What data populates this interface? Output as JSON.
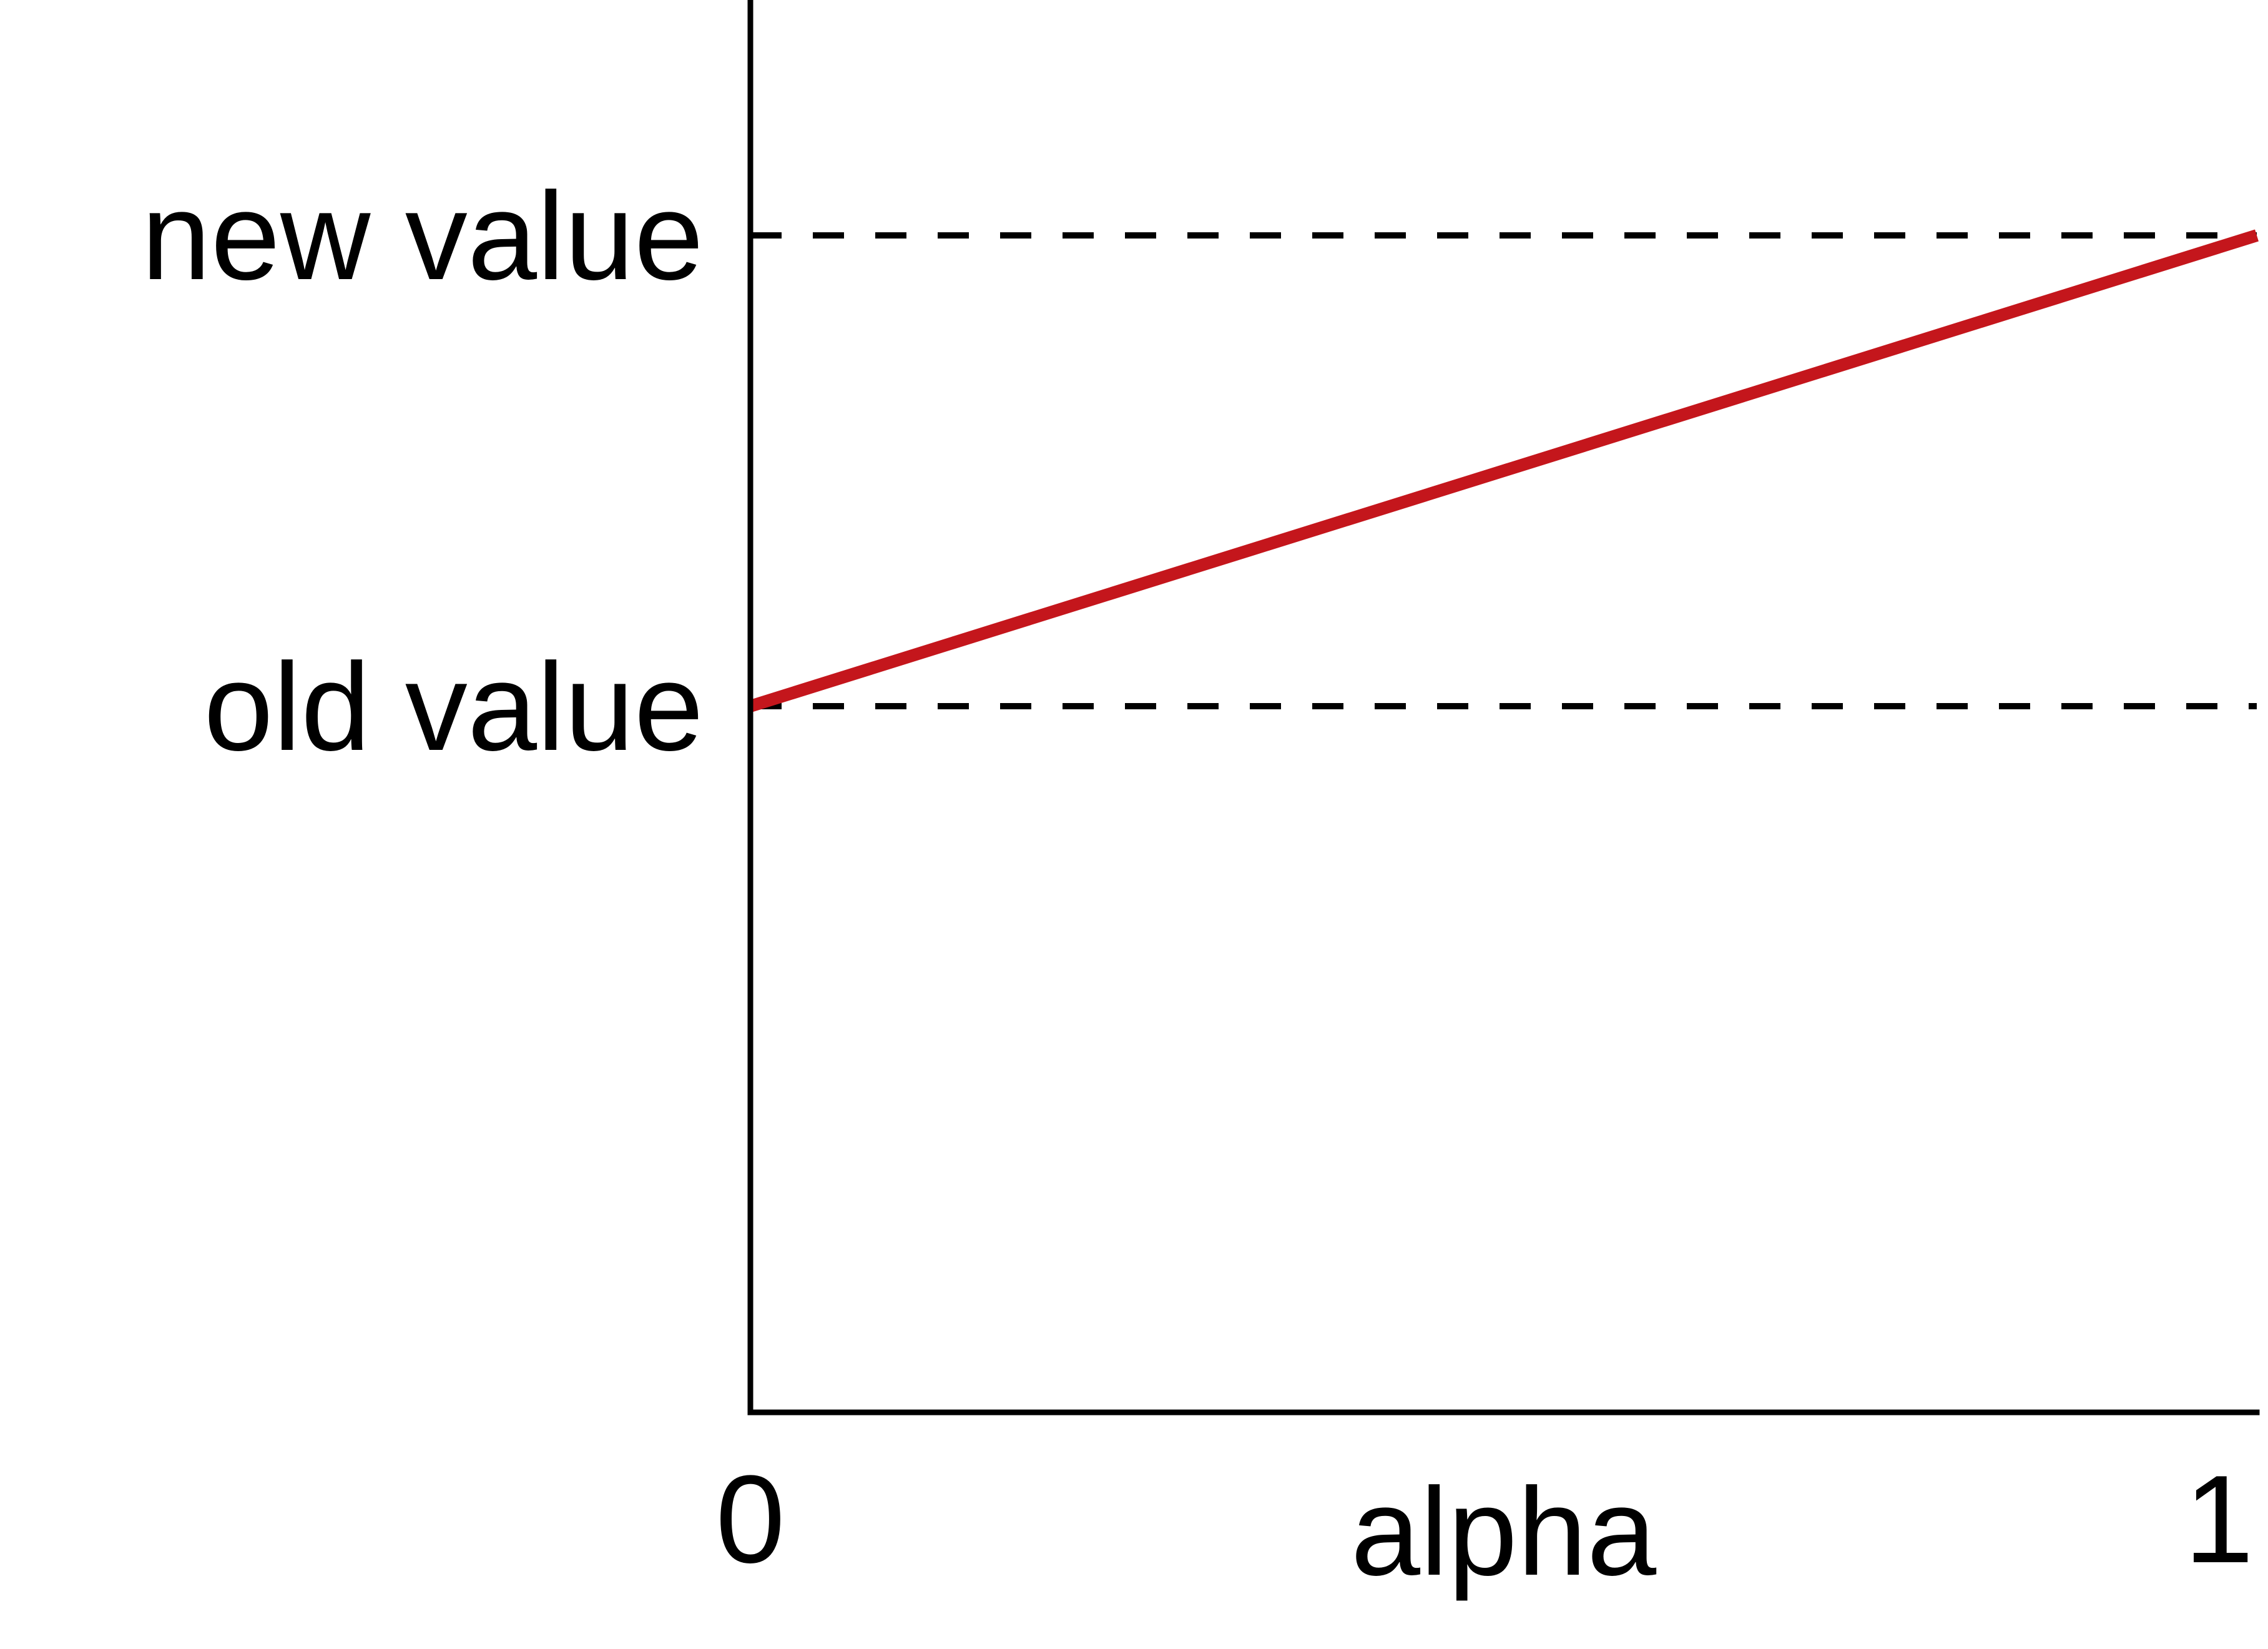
{
  "chart_data": {
    "type": "line",
    "xlabel": "alpha",
    "ylabel": "",
    "title": "",
    "xlim": [
      0,
      1
    ],
    "ylim": [
      -0.5,
      2.5
    ],
    "x_ticks": [
      {
        "value": 0,
        "label": "0"
      },
      {
        "value": 1,
        "label": "1"
      }
    ],
    "y_ticks": [
      {
        "value": 1,
        "label": "old value"
      },
      {
        "value": 2,
        "label": "new value"
      }
    ],
    "series": [
      {
        "x": [
          0,
          1
        ],
        "y": [
          1,
          2
        ],
        "color": "#c4161c",
        "style": "solid"
      }
    ],
    "reference_lines": [
      {
        "y": 1,
        "style": "dashed",
        "color": "#000000"
      },
      {
        "y": 2,
        "style": "dashed",
        "color": "#000000"
      }
    ],
    "grid": false,
    "legend": "none"
  }
}
